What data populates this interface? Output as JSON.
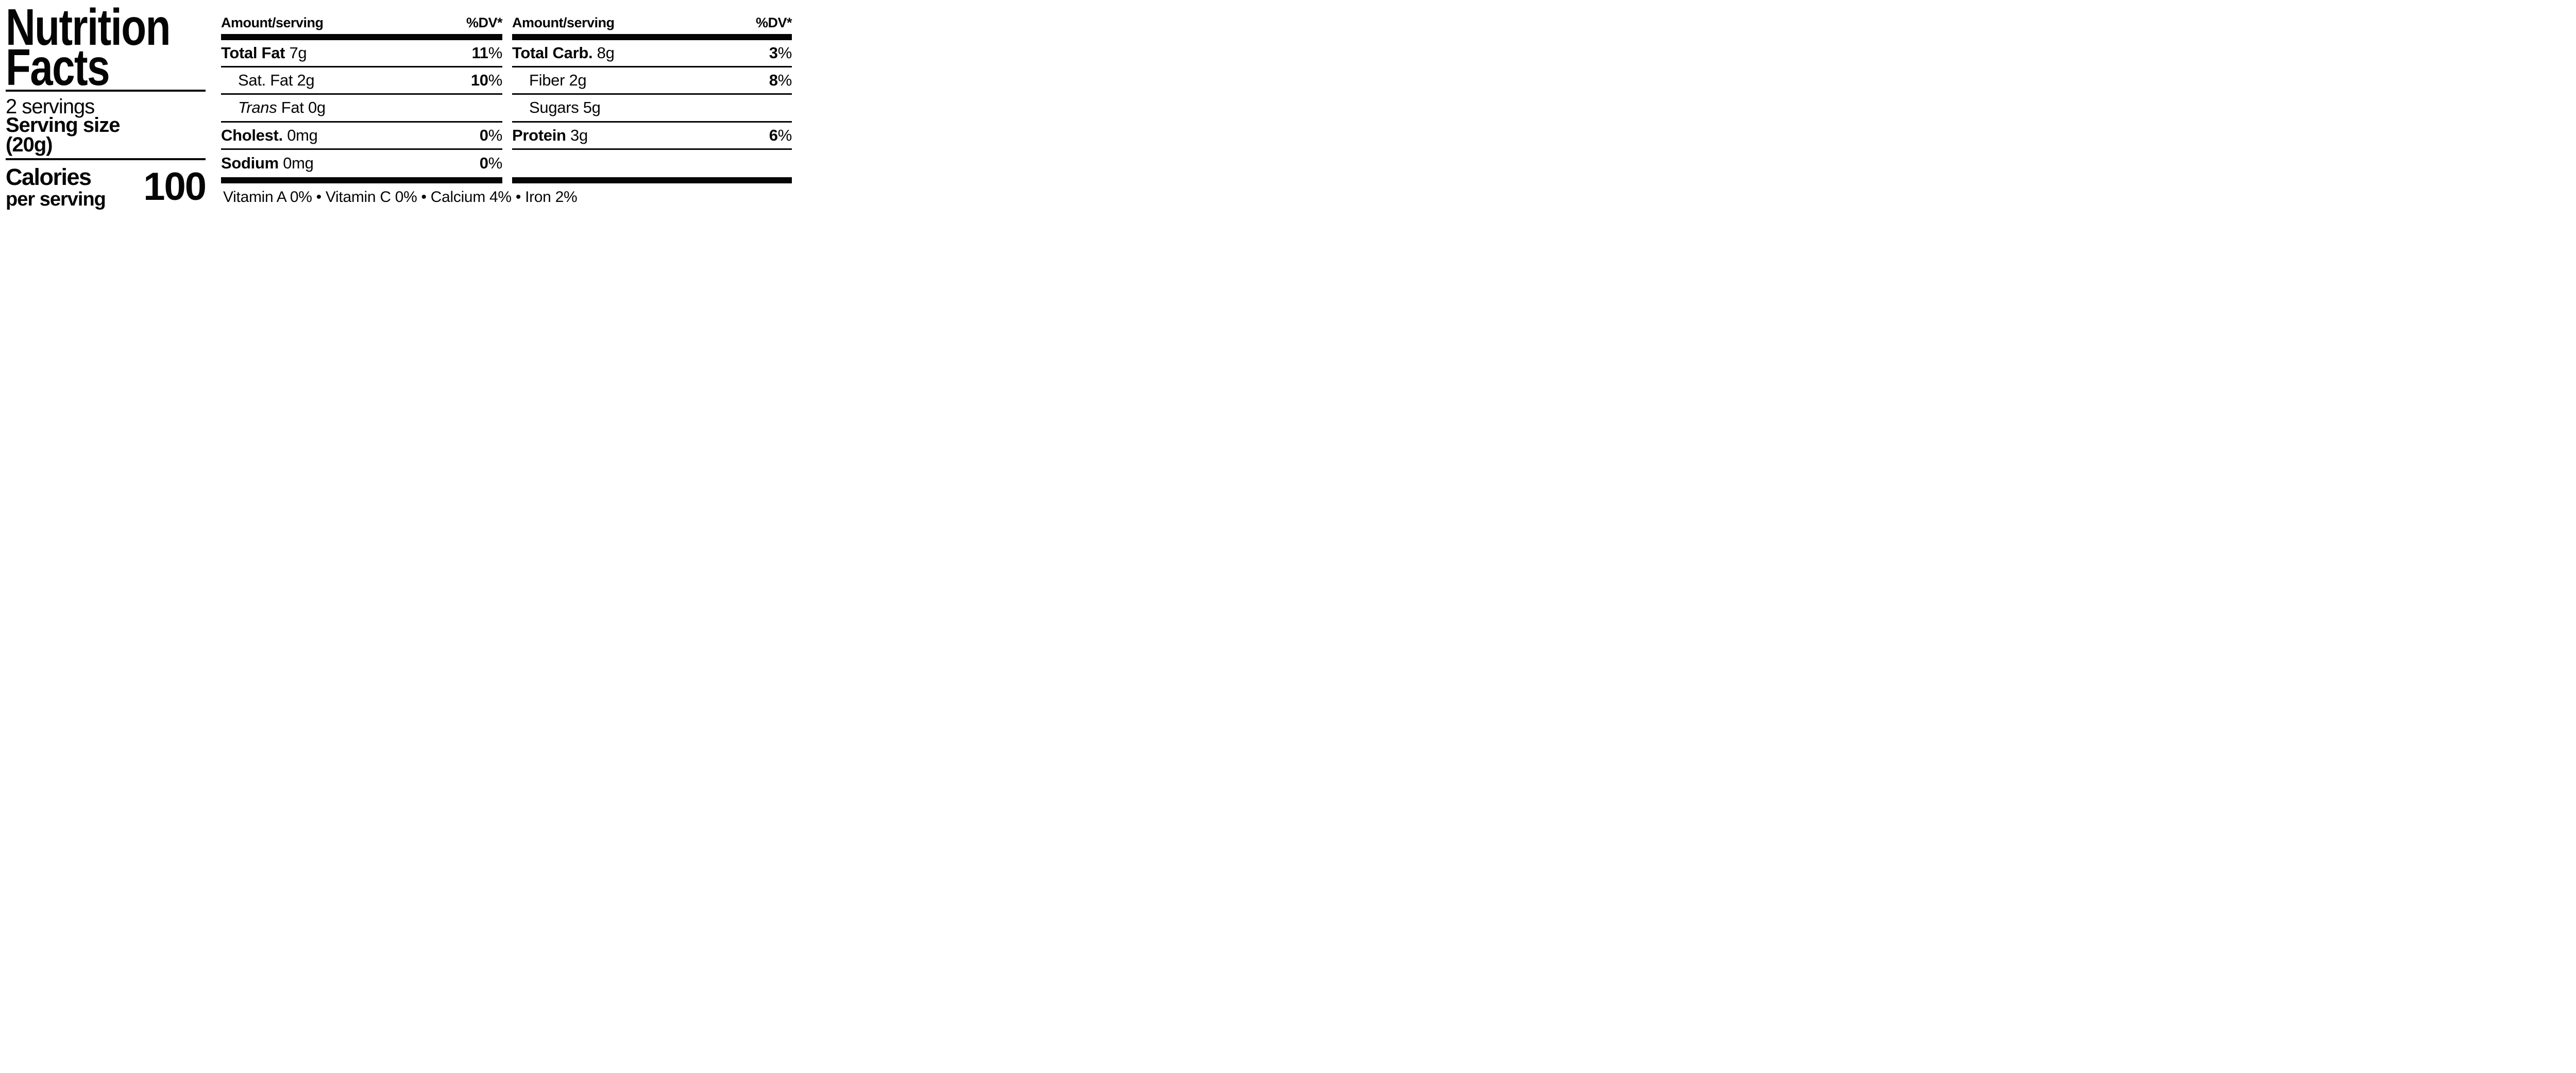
{
  "header_left": {
    "title_line1": "Nutrition",
    "title_line2": "Facts",
    "servings_count": "2 servings",
    "serving_size_label": "Serving size",
    "serving_size_value": "(20g)",
    "calories_label": "Calories",
    "calories_sublabel": "per serving",
    "calories_value": "100"
  },
  "colors": {
    "ink": "#050505",
    "paper": "#ffffff"
  },
  "columns": [
    {
      "header": {
        "amount_label": "Amount/serving",
        "dv_label": "%DV*"
      },
      "rows": [
        {
          "bold": "Total Fat ",
          "plain": "7g",
          "dv_value": "11",
          "dv_unit": "%"
        },
        {
          "plain": "Sat. Fat 2g",
          "dv_value": "10",
          "dv_unit": "%"
        },
        {
          "italic": "Trans ",
          "plain": "Fat 0g"
        },
        {
          "bold": "Cholest. ",
          "plain": "0mg",
          "dv_value": "0",
          "dv_unit": "%"
        },
        {
          "bold": "Sodium ",
          "plain": "0mg",
          "dv_value": "0",
          "dv_unit": "%"
        }
      ]
    },
    {
      "header": {
        "amount_label": "Amount/serving",
        "dv_label": "%DV*"
      },
      "rows": [
        {
          "bold": "Total Carb. ",
          "plain": "8g",
          "dv_value": "3",
          "dv_unit": "%"
        },
        {
          "plain": "Fiber 2g",
          "dv_value": "8",
          "dv_unit": "%"
        },
        {
          "plain": "Sugars 5g"
        },
        {
          "bold": "Protein ",
          "plain": "3g",
          "dv_value": "6",
          "dv_unit": "%"
        }
      ]
    }
  ],
  "footnote": "Vitamin A 0% • Vitamin C 0% • Calcium 4% • Iron 2%"
}
